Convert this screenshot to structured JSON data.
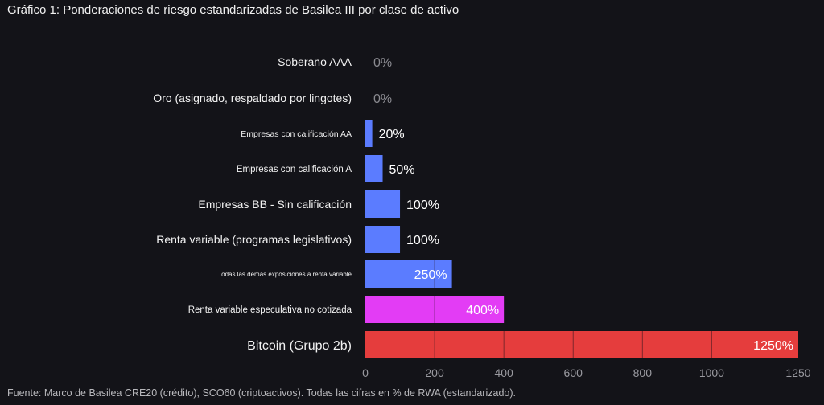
{
  "chart_data": {
    "type": "bar",
    "orientation": "horizontal",
    "title": "Gráfico 1: Ponderaciones de riesgo estandarizadas de Basilea III por clase de activo",
    "source": "Fuente: Marco de Basilea CRE20 (crédito), SCO60 (criptoactivos). Todas las cifras en % de RWA (estandarizado).",
    "categories": [
      "Soberano AAA",
      "Oro (asignado, respaldado por lingotes)",
      "Empresas con calificación AA",
      "Empresas con calificación A",
      "Empresas BB - Sin calificación",
      "Renta variable (programas legislativos)",
      "Todas las demás exposiciones a renta variable",
      "Renta variable especulativa no cotizada",
      "Bitcoin (Grupo 2b)"
    ],
    "values": [
      0,
      0,
      20,
      50,
      100,
      100,
      250,
      400,
      1250
    ],
    "data_labels": [
      "0%",
      "0%",
      "20%",
      "50%",
      "100%",
      "100%",
      "250%",
      "400%",
      "1250%"
    ],
    "colors": [
      "#5b7cff",
      "#5b7cff",
      "#5b7cff",
      "#5b7cff",
      "#5b7cff",
      "#5b7cff",
      "#5b7cff",
      "#e33cf5",
      "#e53d3d"
    ],
    "xlim": [
      0,
      1250
    ],
    "xticks": [
      "0",
      "200",
      "400",
      "600",
      "800",
      "1000",
      "1250"
    ],
    "xlabel": "",
    "ylabel": "",
    "grid": true
  }
}
